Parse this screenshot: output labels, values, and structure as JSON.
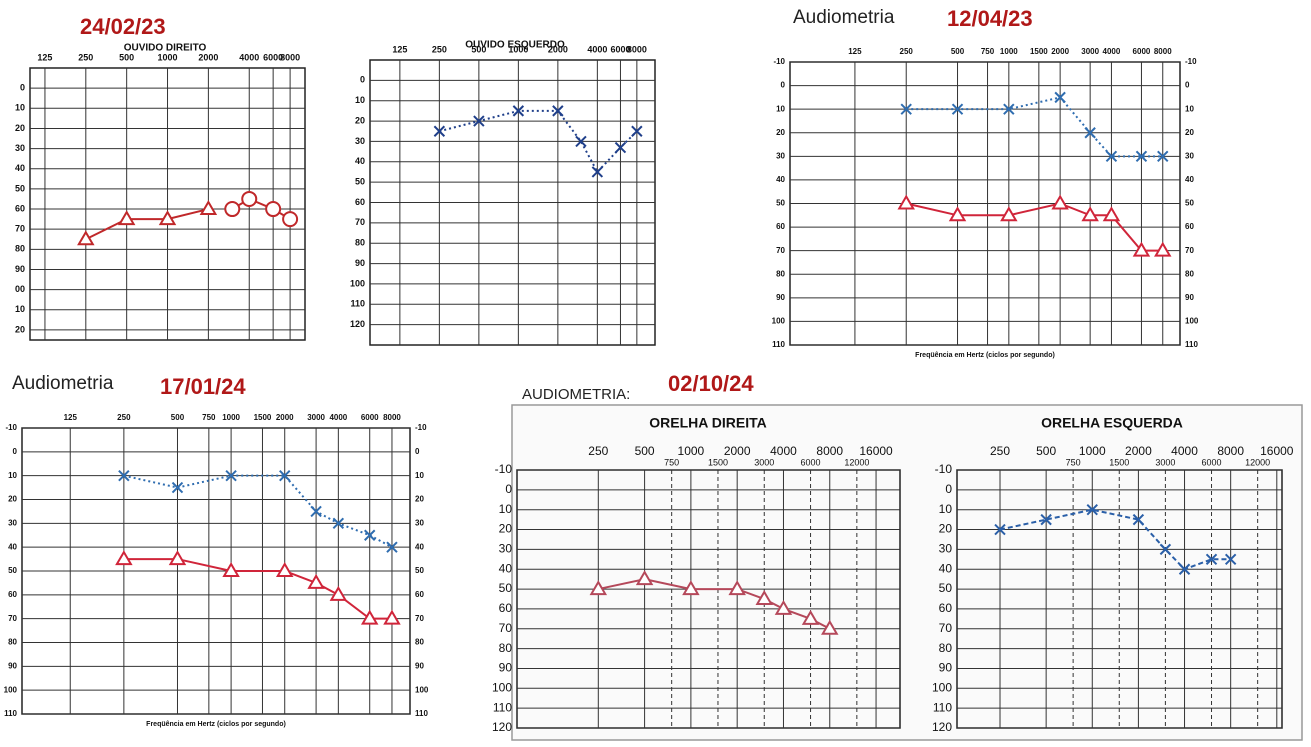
{
  "chart_data": [
    {
      "type": "line",
      "date": "24/02/23",
      "title": "OUVIDO DIREITO",
      "y_reversed": true,
      "xscale": "log",
      "xlim": [
        97,
        10300
      ],
      "xticks": [
        125,
        250,
        500,
        1000,
        2000,
        4000,
        6000,
        8000
      ],
      "ylim": [
        -10,
        125
      ],
      "yticks": [
        0,
        10,
        20,
        30,
        40,
        50,
        60,
        70,
        80,
        90,
        {
          "value": 100,
          "label": "00"
        },
        {
          "value": 110,
          "label": "10"
        },
        {
          "value": 120,
          "label": "20"
        }
      ],
      "grid": true,
      "series": [
        {
          "color": "#c0282a",
          "marker": "triangle",
          "dash": "solid",
          "x": [
            250,
            500,
            1000,
            2000
          ],
          "values": [
            75,
            65,
            65,
            60
          ]
        },
        {
          "color": "#c0282a",
          "marker": "circle",
          "dash": "solid",
          "x": [
            3000,
            4000,
            6000,
            8000
          ],
          "values": [
            60,
            55,
            60,
            65
          ]
        }
      ]
    },
    {
      "type": "line",
      "title": "OUVIDO ESQUERDO",
      "y_reversed": true,
      "xscale": "log",
      "xlim": [
        74,
        11000
      ],
      "xticks": [
        125,
        250,
        500,
        1000,
        2000,
        4000,
        6000,
        8000
      ],
      "ylim": [
        -10,
        130
      ],
      "yticks": [
        0,
        10,
        20,
        30,
        40,
        50,
        60,
        70,
        80,
        90,
        100,
        110,
        120
      ],
      "grid": true,
      "series": [
        {
          "color": "#1f3f8a",
          "marker": "cross",
          "dash": "dotted",
          "x": [
            250,
            500,
            1000,
            2000,
            3000,
            4000,
            6000,
            8000
          ],
          "values": [
            25,
            20,
            15,
            15,
            30,
            45,
            33,
            25
          ]
        }
      ]
    },
    {
      "type": "line",
      "heading": "Audiometria",
      "date": "12/04/23",
      "xlabel": "Freqüência em Hertz (ciclos por segundo)",
      "y_reversed": true,
      "xscale": "log",
      "xlim": [
        52,
        10100
      ],
      "xticks": [
        125,
        250,
        500,
        750,
        1000,
        1500,
        2000,
        3000,
        4000,
        6000,
        8000
      ],
      "ylim": [
        -10,
        110
      ],
      "yticks": [
        -10,
        0,
        10,
        20,
        30,
        40,
        50,
        60,
        70,
        80,
        90,
        100,
        110
      ],
      "grid": true,
      "ylabels_both_sides": true,
      "series": [
        {
          "color": "#2f6db0",
          "marker": "cross",
          "dash": "dotted",
          "x": [
            250,
            500,
            1000,
            2000,
            3000,
            4000,
            6000,
            8000
          ],
          "values": [
            10,
            10,
            10,
            5,
            20,
            30,
            30,
            30
          ]
        },
        {
          "color": "#d0253a",
          "marker": "triangle",
          "dash": "solid",
          "x": [
            250,
            500,
            1000,
            2000,
            3000,
            4000,
            6000,
            8000
          ],
          "values": [
            50,
            55,
            55,
            50,
            55,
            55,
            70,
            70
          ]
        }
      ]
    },
    {
      "type": "line",
      "heading": "Audiometria",
      "date": "17/01/24",
      "xlabel": "Freqüência em Hertz (ciclos por segundo)",
      "y_reversed": true,
      "xscale": "log",
      "xlim": [
        67,
        10100
      ],
      "xticks": [
        125,
        250,
        500,
        750,
        1000,
        1500,
        2000,
        3000,
        4000,
        6000,
        8000
      ],
      "ylim": [
        -10,
        110
      ],
      "yticks": [
        -10,
        0,
        10,
        20,
        30,
        40,
        50,
        60,
        70,
        80,
        90,
        100,
        110
      ],
      "grid": true,
      "ylabels_both_sides": true,
      "series": [
        {
          "color": "#2f6db0",
          "marker": "cross",
          "dash": "dotted",
          "x": [
            250,
            500,
            1000,
            2000,
            3000,
            4000,
            6000,
            8000
          ],
          "values": [
            10,
            15,
            10,
            10,
            25,
            30,
            35,
            40
          ]
        },
        {
          "color": "#d0253a",
          "marker": "triangle",
          "dash": "solid",
          "x": [
            250,
            500,
            1000,
            2000,
            3000,
            4000,
            6000,
            8000
          ],
          "values": [
            45,
            45,
            50,
            50,
            55,
            60,
            70,
            70
          ]
        }
      ]
    },
    {
      "type": "line",
      "heading": "AUDIOMETRIA:",
      "date": "02/10/24",
      "title": "ORELHA DIREITA",
      "y_reversed": true,
      "xscale": "log",
      "xlim": [
        74,
        22900
      ],
      "xticks": [
        250,
        500,
        750,
        1000,
        1500,
        2000,
        3000,
        4000,
        6000,
        8000,
        12000,
        16000
      ],
      "xtick_rows": 2,
      "ylim": [
        -10,
        120
      ],
      "yticks": [
        -10,
        0,
        10,
        20,
        30,
        40,
        50,
        60,
        70,
        80,
        90,
        100,
        110,
        120
      ],
      "grid": true,
      "series": [
        {
          "color": "#b5485a",
          "marker": "triangle",
          "dash": "solid",
          "x": [
            250,
            500,
            1000,
            2000,
            3000,
            4000,
            6000,
            8000
          ],
          "values": [
            50,
            45,
            50,
            50,
            55,
            60,
            65,
            70
          ]
        }
      ]
    },
    {
      "type": "line",
      "title": "ORELHA ESQUERDA",
      "y_reversed": true,
      "xscale": "log",
      "xlim": [
        131,
        17300
      ],
      "xticks": [
        250,
        500,
        750,
        1000,
        1500,
        2000,
        3000,
        4000,
        6000,
        8000,
        12000,
        16000
      ],
      "xtick_rows": 2,
      "ylim": [
        -10,
        120
      ],
      "yticks": [
        -10,
        0,
        10,
        20,
        30,
        40,
        50,
        60,
        70,
        80,
        90,
        100,
        110,
        120
      ],
      "grid": true,
      "series": [
        {
          "color": "#2a5fa8",
          "marker": "cross",
          "dash": "dashed",
          "x": [
            250,
            500,
            1000,
            2000,
            3000,
            4000,
            6000,
            8000
          ],
          "values": [
            20,
            15,
            10,
            15,
            30,
            40,
            35,
            35
          ]
        }
      ]
    }
  ]
}
